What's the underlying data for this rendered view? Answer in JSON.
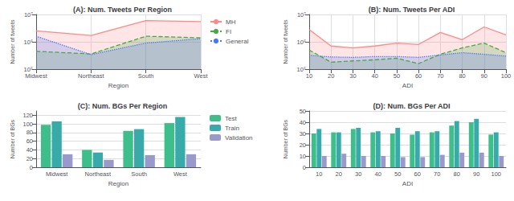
{
  "chart_data": [
    {
      "type": "area",
      "title": "(A): Num. Tweets Per Region",
      "xlabel": "Region",
      "ylabel": "Number of tweets",
      "categories": [
        "Midwest",
        "Northeast",
        "South",
        "West"
      ],
      "series": [
        {
          "name": "MH",
          "color": "#FF8888",
          "line_style": "solid",
          "values": [
            2500000,
            1700000,
            6000000,
            5500000
          ]
        },
        {
          "name": "FI",
          "color": "#44AA44",
          "line_style": "dashed",
          "values": [
            450000,
            360000,
            1600000,
            1400000
          ]
        },
        {
          "name": "General",
          "color": "#4477FF",
          "line_style": "dotted",
          "values": [
            1600000,
            340000,
            900000,
            1300000
          ]
        }
      ],
      "log": "y",
      "ylim": [
        100000,
        10000000
      ],
      "yticks": [
        {
          "value": 100000,
          "label": "10⁵"
        },
        {
          "value": 1000000,
          "label": "10⁶"
        },
        {
          "value": 10000000,
          "label": "10⁷"
        }
      ],
      "grid": true,
      "legend": "upper right"
    },
    {
      "type": "area",
      "title": "(B): Num. Tweets Per ADI",
      "xlabel": "ADI",
      "ylabel": "Number of tweets",
      "categories": [
        "10",
        "20",
        "30",
        "40",
        "50",
        "60",
        "70",
        "80",
        "90",
        "100"
      ],
      "series": [
        {
          "color": "#FF8888",
          "line_style": "solid",
          "values": [
            2800000,
            700000,
            600000,
            700000,
            900000,
            800000,
            2200000,
            1200000,
            3500000,
            1800000
          ]
        },
        {
          "color": "#44AA44",
          "line_style": "dashed",
          "values": [
            500000,
            180000,
            200000,
            220000,
            250000,
            160000,
            350000,
            600000,
            900000,
            400000
          ]
        },
        {
          "color": "#4477FF",
          "line_style": "dotted",
          "values": [
            320000,
            280000,
            270000,
            290000,
            290000,
            270000,
            330000,
            400000,
            350000,
            300000
          ]
        }
      ],
      "log": "y",
      "ylim": [
        100000,
        10000000
      ],
      "yticks": [
        {
          "value": 100000,
          "label": "10⁵"
        },
        {
          "value": 1000000,
          "label": "10⁶"
        },
        {
          "value": 10000000,
          "label": "10⁷"
        }
      ],
      "grid": true
    },
    {
      "type": "bar",
      "title": "(C): Num. BGs Per Region",
      "xlabel": "Region",
      "ylabel": "Number of BGs",
      "categories": [
        "Midwest",
        "Northeast",
        "South",
        "West"
      ],
      "series": [
        {
          "name": "Test",
          "color": "#3DBE8A",
          "values": [
            98,
            40,
            84,
            102
          ]
        },
        {
          "name": "Train",
          "color": "#38AAAA",
          "values": [
            106,
            34,
            88,
            116
          ]
        },
        {
          "name": "Validation",
          "color": "#9999CC",
          "values": [
            30,
            17,
            28,
            30
          ]
        }
      ],
      "ylim": [
        0,
        130
      ],
      "yticks": [
        0,
        20,
        40,
        60,
        80,
        100,
        120
      ],
      "grid": "y",
      "legend": "upper right"
    },
    {
      "type": "bar",
      "title": "(D): Num. BGs Per ADI",
      "xlabel": "ADI",
      "ylabel": "Number of BGs",
      "categories": [
        "10",
        "20",
        "30",
        "40",
        "50",
        "60",
        "70",
        "80",
        "90",
        "100"
      ],
      "series": [
        {
          "color": "#3DBE8A",
          "values": [
            30,
            31,
            34,
            31,
            30,
            29,
            31,
            37,
            40,
            29
          ]
        },
        {
          "color": "#38AAAA",
          "values": [
            34,
            31,
            35,
            32,
            35,
            32,
            32,
            41,
            43,
            31
          ]
        },
        {
          "color": "#9999CC",
          "values": [
            10,
            12,
            10,
            10,
            9,
            9,
            11,
            13,
            13,
            10
          ]
        }
      ],
      "ylim": [
        0,
        50
      ],
      "yticks": [
        0,
        10,
        20,
        30,
        40,
        50
      ],
      "grid": "y"
    }
  ]
}
